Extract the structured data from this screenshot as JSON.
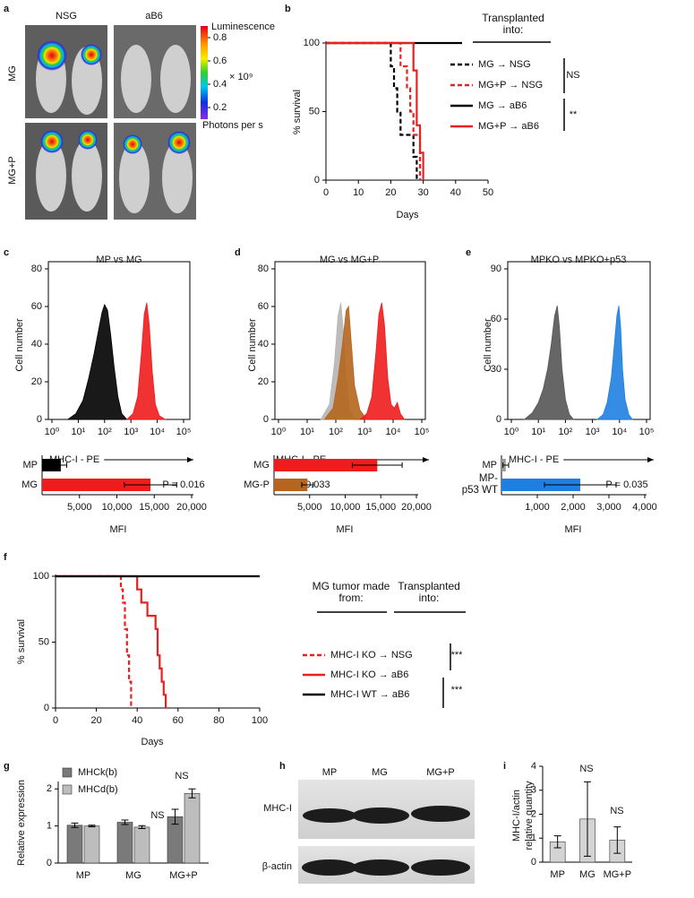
{
  "panel_a": {
    "label": "a",
    "columns": [
      "NSG",
      "aB6"
    ],
    "rows": [
      "MG",
      "MG+P"
    ],
    "colorbar": {
      "title": "Luminescence",
      "lim": [
        0.1,
        0.9
      ],
      "ticks": [
        0.2,
        0.4,
        0.6,
        0.8
      ],
      "scale_label": "× 10⁹",
      "unit": "Photons per s"
    }
  },
  "panel_h": {
    "label": "h",
    "lanes": [
      "MP",
      "MG",
      "MG+P"
    ],
    "rows": [
      "MHC-I",
      "β-actin"
    ]
  },
  "chart_data": [
    {
      "type": "line",
      "label": "b",
      "xlabel": "Days",
      "ylabel": "% survival",
      "xlim": [
        0,
        50
      ],
      "xticks": [
        0,
        10,
        20,
        30,
        40,
        50
      ],
      "ylim": [
        0,
        100
      ],
      "yticks": [
        0,
        50,
        100
      ],
      "legend": "right",
      "legend_titles": [
        "Transplanted into:"
      ],
      "annotations": [
        "NS",
        "**"
      ],
      "series": [
        {
          "name": "MG → NSG",
          "color": "#000000",
          "dash": true,
          "x": [
            0,
            20,
            20,
            21,
            21,
            22,
            22,
            23,
            23,
            27,
            27,
            28,
            28
          ],
          "values": [
            100,
            100,
            83,
            83,
            67,
            67,
            50,
            50,
            33,
            33,
            17,
            17,
            0
          ]
        },
        {
          "name": "MG+P → NSG",
          "color": "#e8201f",
          "dash": true,
          "x": [
            0,
            23,
            23,
            25,
            25,
            26,
            26,
            27,
            27,
            29,
            29
          ],
          "values": [
            100,
            100,
            83,
            83,
            67,
            67,
            50,
            50,
            33,
            33,
            0
          ]
        },
        {
          "name": "MG → aB6",
          "color": "#000000",
          "dash": false,
          "x": [
            0,
            42
          ],
          "values": [
            100,
            100
          ]
        },
        {
          "name": "MG+P → aB6",
          "color": "#e8201f",
          "dash": false,
          "x": [
            0,
            27,
            27,
            28,
            28,
            29,
            29,
            30,
            30
          ],
          "values": [
            100,
            100,
            80,
            80,
            40,
            40,
            20,
            20,
            0
          ]
        }
      ]
    },
    {
      "type": "area",
      "label": "c",
      "title": "MP vs MG",
      "xlabel": "MHC-I - PE",
      "ylabel": "Cell number",
      "xscale": "log",
      "xlim": [
        1,
        100000
      ],
      "xticks": [
        {
          "value": 1,
          "label": "10⁰"
        },
        {
          "value": 10,
          "label": "10¹"
        },
        {
          "value": 100,
          "label": "10²"
        },
        {
          "value": 1000,
          "label": "10³"
        },
        {
          "value": 10000,
          "label": "10⁴"
        },
        {
          "value": 100000,
          "label": "10⁵"
        }
      ],
      "ylim": [
        0,
        80
      ],
      "yticks": [
        0,
        20,
        40,
        60,
        80
      ],
      "series": [
        {
          "color": "#000000",
          "x": [
            4,
            8,
            15,
            25,
            40,
            60,
            80,
            100,
            130,
            170,
            230,
            320,
            450,
            700
          ],
          "values": [
            0,
            3,
            10,
            22,
            35,
            48,
            57,
            61,
            58,
            45,
            28,
            12,
            3,
            0
          ]
        },
        {
          "color": "#ee1c1c",
          "x": [
            700,
            1200,
            1800,
            2500,
            3200,
            4000,
            5000,
            6500,
            8500,
            12000,
            20000
          ],
          "values": [
            0,
            3,
            12,
            35,
            56,
            62,
            50,
            25,
            8,
            2,
            0
          ]
        }
      ]
    },
    {
      "type": "bar",
      "orientation": "horizontal",
      "xlabel": "MFI",
      "categories": [
        "MP",
        "MG"
      ],
      "values": [
        2500,
        14500
      ],
      "errors": [
        800,
        3500
      ],
      "colors": [
        "#000000",
        "#ee1c1c"
      ],
      "xlim": [
        0,
        20000
      ],
      "xticks": [
        {
          "value": 5000,
          "label": "5,000"
        },
        {
          "value": 10000,
          "label": "10,000"
        },
        {
          "value": 15000,
          "label": "15,000"
        },
        {
          "value": 20000,
          "label": "20,000"
        }
      ],
      "annotations": [
        "P = 0.016"
      ]
    },
    {
      "type": "area",
      "label": "d",
      "title": "MG vs MG+P",
      "xlabel": "MHC-I - PE",
      "ylabel": "Cell number",
      "xscale": "log",
      "xlim": [
        1,
        100000
      ],
      "xticks": [
        {
          "value": 1,
          "label": "10⁰"
        },
        {
          "value": 10,
          "label": "10¹"
        },
        {
          "value": 100,
          "label": "10²"
        },
        {
          "value": 1000,
          "label": "10³"
        },
        {
          "value": 10000,
          "label": "10⁴"
        },
        {
          "value": 100000,
          "label": "10⁵"
        }
      ],
      "ylim": [
        0,
        80
      ],
      "yticks": [
        0,
        20,
        40,
        60,
        80
      ],
      "series": [
        {
          "color": "#b5b5b5",
          "x": [
            30,
            60,
            90,
            120,
            150,
            180,
            230,
            300,
            450
          ],
          "values": [
            0,
            8,
            30,
            55,
            62,
            48,
            20,
            5,
            0
          ]
        },
        {
          "color": "#b5651d",
          "x": [
            40,
            80,
            120,
            170,
            230,
            280,
            350,
            450,
            700,
            1200
          ],
          "values": [
            0,
            6,
            22,
            40,
            58,
            60,
            40,
            18,
            5,
            0
          ]
        },
        {
          "color": "#ee1c1c",
          "x": [
            700,
            1200,
            1800,
            2500,
            3200,
            4000,
            5000,
            6500,
            8500,
            11000,
            14000,
            18000,
            25000
          ],
          "values": [
            0,
            3,
            12,
            35,
            56,
            62,
            50,
            22,
            8,
            6,
            9,
            3,
            0
          ]
        }
      ]
    },
    {
      "type": "bar",
      "orientation": "horizontal",
      "xlabel": "MFI",
      "categories": [
        "MG",
        "MG-P"
      ],
      "values": [
        14500,
        4700
      ],
      "errors": [
        3500,
        800
      ],
      "colors": [
        "#ee1c1c",
        "#b5651d"
      ],
      "xlim": [
        0,
        20000
      ],
      "xticks": [
        {
          "value": 5000,
          "label": "5,000"
        },
        {
          "value": 10000,
          "label": "10,000"
        },
        {
          "value": 15000,
          "label": "15,000"
        },
        {
          "value": 20000,
          "label": "20,000"
        }
      ],
      "annotations": [
        "P = 0.033"
      ]
    },
    {
      "type": "area",
      "label": "e",
      "title": "MPKO vs MPKO+p53",
      "xlabel": "MHC-I - PE",
      "ylabel": "Cell number",
      "xscale": "log",
      "xlim": [
        1,
        100000
      ],
      "xticks": [
        {
          "value": 1,
          "label": "10⁰"
        },
        {
          "value": 10,
          "label": "10¹"
        },
        {
          "value": 100,
          "label": "10²"
        },
        {
          "value": 1000,
          "label": "10³"
        },
        {
          "value": 10000,
          "label": "10⁴"
        },
        {
          "value": 100000,
          "label": "10⁵"
        }
      ],
      "ylim": [
        0,
        90
      ],
      "yticks": [
        0,
        30,
        60,
        90
      ],
      "series": [
        {
          "color": "#555555",
          "x": [
            3,
            6,
            10,
            15,
            22,
            30,
            40,
            50,
            60,
            75,
            100,
            140,
            200
          ],
          "values": [
            0,
            4,
            10,
            18,
            30,
            45,
            62,
            68,
            55,
            30,
            12,
            3,
            0
          ]
        },
        {
          "color": "#1f7fe0",
          "x": [
            1500,
            2500,
            3500,
            5000,
            6500,
            8000,
            9500,
            11000,
            13000,
            16000,
            22000,
            30000
          ],
          "values": [
            0,
            3,
            10,
            25,
            45,
            62,
            68,
            55,
            30,
            12,
            3,
            0
          ]
        }
      ]
    },
    {
      "type": "bar",
      "orientation": "horizontal",
      "xlabel": "MFI",
      "categories": [
        "MP",
        "MP- p53 WT"
      ],
      "values": [
        120,
        2200
      ],
      "errors": [
        80,
        1000
      ],
      "colors": [
        "#999999",
        "#1f7fe0"
      ],
      "xlim": [
        0,
        4000
      ],
      "xticks": [
        {
          "value": 1000,
          "label": "1,000"
        },
        {
          "value": 2000,
          "label": "2,000"
        },
        {
          "value": 3000,
          "label": "3,000"
        },
        {
          "value": 4000,
          "label": "4,000"
        }
      ],
      "annotations": [
        "P = 0.035"
      ]
    },
    {
      "type": "line",
      "label": "f",
      "xlabel": "Days",
      "ylabel": "% survival",
      "xlim": [
        0,
        100
      ],
      "xticks": [
        0,
        20,
        40,
        60,
        80,
        100
      ],
      "ylim": [
        0,
        100
      ],
      "yticks": [
        0,
        50,
        100
      ],
      "legend": "right",
      "legend_titles": [
        "MG tumor made from:",
        "Transplanted into:"
      ],
      "annotations": [
        "***",
        "***"
      ],
      "series": [
        {
          "name": "MHC-I KO → NSG",
          "color": "#e8201f",
          "dash": true,
          "x": [
            0,
            32,
            32,
            33,
            33,
            34,
            34,
            35,
            35,
            36,
            36,
            37,
            37
          ],
          "values": [
            100,
            100,
            90,
            90,
            80,
            80,
            60,
            60,
            40,
            40,
            20,
            20,
            0
          ]
        },
        {
          "name": "MHC-I KO → aB6",
          "color": "#e8201f",
          "dash": false,
          "x": [
            0,
            40,
            40,
            42,
            42,
            45,
            45,
            49,
            49,
            50,
            50,
            51,
            51,
            52,
            52,
            53,
            53,
            54,
            54
          ],
          "values": [
            100,
            100,
            90,
            90,
            80,
            80,
            70,
            70,
            60,
            60,
            40,
            40,
            30,
            30,
            20,
            20,
            10,
            10,
            0
          ]
        },
        {
          "name": "MHC-I WT → aB6",
          "color": "#000000",
          "dash": false,
          "x": [
            0,
            100
          ],
          "values": [
            100,
            100
          ]
        }
      ]
    },
    {
      "type": "bar",
      "label": "g",
      "ylabel": "Relative expression",
      "categories": [
        "MP",
        "MG",
        "MG+P"
      ],
      "ylim": [
        0,
        2.2
      ],
      "yticks": [
        0,
        1,
        2
      ],
      "legend": "upper left",
      "annotations": [
        "NS",
        "NS"
      ],
      "series": [
        {
          "name": "MHCk(b)",
          "color": "#7a7a7a",
          "values": [
            1.02,
            1.1,
            1.25
          ],
          "errors": [
            0.06,
            0.06,
            0.2
          ]
        },
        {
          "name": "MHCd(b)",
          "color": "#bdbdbd",
          "values": [
            1.0,
            0.97,
            1.88
          ],
          "errors": [
            0.02,
            0.04,
            0.12
          ]
        }
      ]
    },
    {
      "type": "bar",
      "label": "i",
      "ylabel": [
        "MHC-I/actin",
        "relative quantity"
      ],
      "categories": [
        "MP",
        "MG",
        "MG+P"
      ],
      "ylim": [
        0,
        4
      ],
      "yticks": [
        0,
        1,
        2,
        3,
        4
      ],
      "annotations": [
        "NS",
        "NS"
      ],
      "series": [
        {
          "color": "#d4d4d4",
          "values": [
            0.85,
            1.8,
            0.92
          ],
          "errors": [
            0.25,
            1.55,
            0.55
          ]
        }
      ]
    }
  ]
}
